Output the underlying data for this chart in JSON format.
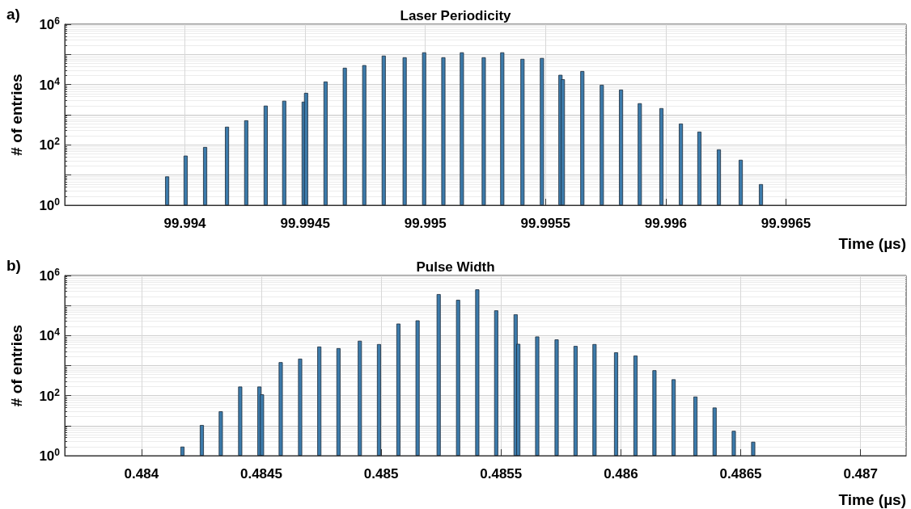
{
  "chart_data": [
    {
      "type": "bar",
      "title": "Laser Periodicity",
      "xlabel": "Time (µs)",
      "ylabel": "# of entries",
      "annotations": [
        "a)"
      ],
      "x": [
        99.993926,
        99.994003,
        99.994084,
        99.994175,
        99.994255,
        99.994336,
        99.994413,
        99.994494,
        99.994504,
        99.994585,
        99.994665,
        99.994746,
        99.994827,
        99.994914,
        99.994995,
        99.995075,
        99.995152,
        99.995243,
        99.99532,
        99.995404,
        99.995485,
        99.995562,
        99.995572,
        99.995653,
        99.995734,
        99.995814,
        99.995892,
        99.995982,
        99.996063,
        99.99614,
        99.996221,
        99.996312,
        99.996396
      ],
      "values": [
        9,
        44,
        85,
        400,
        650,
        2000,
        2900,
        2700,
        5300,
        12600,
        36000,
        44000,
        91000,
        80000,
        117000,
        80000,
        117000,
        80000,
        117000,
        71000,
        76000,
        21000,
        15000,
        28000,
        9800,
        6800,
        2400,
        1650,
        510,
        275,
        71,
        32,
        5
      ],
      "color": "#3c7bab",
      "log": "y",
      "grid": true,
      "xlim": [
        99.9935,
        99.997
      ],
      "xticks": [
        99.994,
        99.9945,
        99.995,
        99.9955,
        99.996,
        99.9965
      ],
      "ylim": [
        1,
        1000000
      ],
      "yticks": [
        {
          "value": 1,
          "label": "10$^{0}$"
        },
        {
          "value": 10,
          "label": null
        },
        {
          "value": 100,
          "label": "10$^{2}$"
        },
        {
          "value": 1000,
          "label": null
        },
        {
          "value": 10000,
          "label": "10$^{4}$"
        },
        {
          "value": 100000,
          "label": null
        },
        {
          "value": 1000000,
          "label": "10$^{6}$"
        }
      ]
    },
    {
      "type": "bar",
      "title": "Pulse Width",
      "xlabel": "Time (µs)",
      "ylabel": "# of entries",
      "annotations": [
        "b)"
      ],
      "x": [
        0.484171,
        0.484252,
        0.484331,
        0.484412,
        0.484492,
        0.484503,
        0.484581,
        0.484662,
        0.484742,
        0.484822,
        0.484911,
        0.484991,
        0.485072,
        0.485152,
        0.48524,
        0.485321,
        0.485401,
        0.48548,
        0.485561,
        0.485572,
        0.485651,
        0.485732,
        0.485811,
        0.48589,
        0.48598,
        0.486061,
        0.48614,
        0.48622,
        0.486311,
        0.486391,
        0.486471,
        0.486552
      ],
      "values": [
        2,
        10.5,
        30,
        200,
        200,
        110,
        1300,
        1700,
        4300,
        3800,
        6700,
        5200,
        25000,
        32000,
        240000,
        155000,
        345000,
        69000,
        51000,
        5300,
        9300,
        7400,
        4500,
        5200,
        2750,
        2150,
        700,
        350,
        93,
        40,
        6.7,
        2.9
      ],
      "color": "#3c7bab",
      "log": "y",
      "grid": true,
      "xlim": [
        0.48368,
        0.48719
      ],
      "xticks": [
        0.484,
        0.4845,
        0.485,
        0.4855,
        0.486,
        0.4865,
        0.487
      ],
      "ylim": [
        1,
        1000000
      ],
      "yticks": [
        {
          "value": 1,
          "label": "10$^{0}$"
        },
        {
          "value": 10,
          "label": null
        },
        {
          "value": 100,
          "label": "10$^{2}$"
        },
        {
          "value": 1000,
          "label": null
        },
        {
          "value": 10000,
          "label": "10$^{4}$"
        },
        {
          "value": 100000,
          "label": null
        },
        {
          "value": 1000000,
          "label": "10$^{6}$"
        }
      ]
    }
  ]
}
